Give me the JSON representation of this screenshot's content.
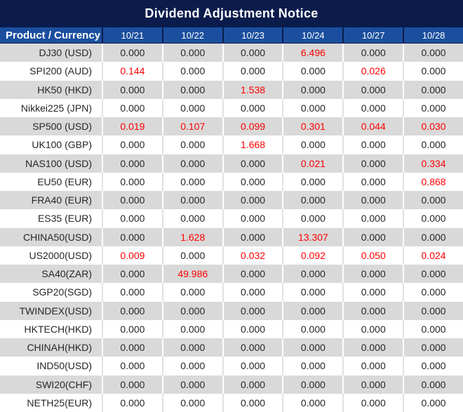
{
  "chart_data": {
    "type": "table",
    "title": "Dividend Adjustment Notice",
    "columns": [
      "Product / Currency",
      "10/21",
      "10/22",
      "10/23",
      "10/24",
      "10/27",
      "10/28"
    ],
    "rows": [
      {
        "product": "DJ30 (USD)",
        "values": [
          "0.000",
          "0.000",
          "0.000",
          "6.496",
          "0.000",
          "0.000"
        ],
        "red_indexes": [
          3
        ]
      },
      {
        "product": "SPI200 (AUD)",
        "values": [
          "0.144",
          "0.000",
          "0.000",
          "0.000",
          "0.026",
          "0.000"
        ],
        "red_indexes": [
          0,
          4
        ]
      },
      {
        "product": "HK50 (HKD)",
        "values": [
          "0.000",
          "0.000",
          "1.538",
          "0.000",
          "0.000",
          "0.000"
        ],
        "red_indexes": [
          2
        ]
      },
      {
        "product": "Nikkei225 (JPN)",
        "values": [
          "0.000",
          "0.000",
          "0.000",
          "0.000",
          "0.000",
          "0.000"
        ],
        "red_indexes": []
      },
      {
        "product": "SP500 (USD)",
        "values": [
          "0.019",
          "0.107",
          "0.099",
          "0.301",
          "0.044",
          "0.030"
        ],
        "red_indexes": [
          0,
          1,
          2,
          3,
          4,
          5
        ]
      },
      {
        "product": "UK100 (GBP)",
        "values": [
          "0.000",
          "0.000",
          "1.668",
          "0.000",
          "0.000",
          "0.000"
        ],
        "red_indexes": [
          2
        ]
      },
      {
        "product": "NAS100 (USD)",
        "values": [
          "0.000",
          "0.000",
          "0.000",
          "0.021",
          "0.000",
          "0.334"
        ],
        "red_indexes": [
          3,
          5
        ]
      },
      {
        "product": "EU50 (EUR)",
        "values": [
          "0.000",
          "0.000",
          "0.000",
          "0.000",
          "0.000",
          "0.868"
        ],
        "red_indexes": [
          5
        ]
      },
      {
        "product": "FRA40 (EUR)",
        "values": [
          "0.000",
          "0.000",
          "0.000",
          "0.000",
          "0.000",
          "0.000"
        ],
        "red_indexes": []
      },
      {
        "product": "ES35 (EUR)",
        "values": [
          "0.000",
          "0.000",
          "0.000",
          "0.000",
          "0.000",
          "0.000"
        ],
        "red_indexes": []
      },
      {
        "product": "CHINA50(USD)",
        "values": [
          "0.000",
          "1.628",
          "0.000",
          "13.307",
          "0.000",
          "0.000"
        ],
        "red_indexes": [
          1,
          3
        ]
      },
      {
        "product": "US2000(USD)",
        "values": [
          "0.009",
          "0.000",
          "0.032",
          "0.092",
          "0.050",
          "0.024"
        ],
        "red_indexes": [
          0,
          2,
          3,
          4,
          5
        ]
      },
      {
        "product": "SA40(ZAR)",
        "values": [
          "0.000",
          "49.986",
          "0.000",
          "0.000",
          "0.000",
          "0.000"
        ],
        "red_indexes": [
          1
        ]
      },
      {
        "product": "SGP20(SGD)",
        "values": [
          "0.000",
          "0.000",
          "0.000",
          "0.000",
          "0.000",
          "0.000"
        ],
        "red_indexes": []
      },
      {
        "product": "TWINDEX(USD)",
        "values": [
          "0.000",
          "0.000",
          "0.000",
          "0.000",
          "0.000",
          "0.000"
        ],
        "red_indexes": []
      },
      {
        "product": "HKTECH(HKD)",
        "values": [
          "0.000",
          "0.000",
          "0.000",
          "0.000",
          "0.000",
          "0.000"
        ],
        "red_indexes": []
      },
      {
        "product": "CHINAH(HKD)",
        "values": [
          "0.000",
          "0.000",
          "0.000",
          "0.000",
          "0.000",
          "0.000"
        ],
        "red_indexes": []
      },
      {
        "product": "IND50(USD)",
        "values": [
          "0.000",
          "0.000",
          "0.000",
          "0.000",
          "0.000",
          "0.000"
        ],
        "red_indexes": []
      },
      {
        "product": "SWI20(CHF)",
        "values": [
          "0.000",
          "0.000",
          "0.000",
          "0.000",
          "0.000",
          "0.000"
        ],
        "red_indexes": []
      },
      {
        "product": "NETH25(EUR)",
        "values": [
          "0.000",
          "0.000",
          "0.000",
          "0.000",
          "0.000",
          "0.000"
        ],
        "red_indexes": []
      }
    ],
    "layout": {
      "row_striping": "first-row-gray-then-alternating",
      "value_alignment": "center",
      "product_alignment": "right"
    }
  },
  "colors": {
    "title_bar_bg": "#0b1c4c",
    "header_bg": "#1b4f9e",
    "header_text": "#ffffff",
    "row_alt_bg": "#d9d9d9",
    "row_bg": "#ffffff",
    "value_text": "#262626",
    "highlight_red": "#fe0000"
  }
}
